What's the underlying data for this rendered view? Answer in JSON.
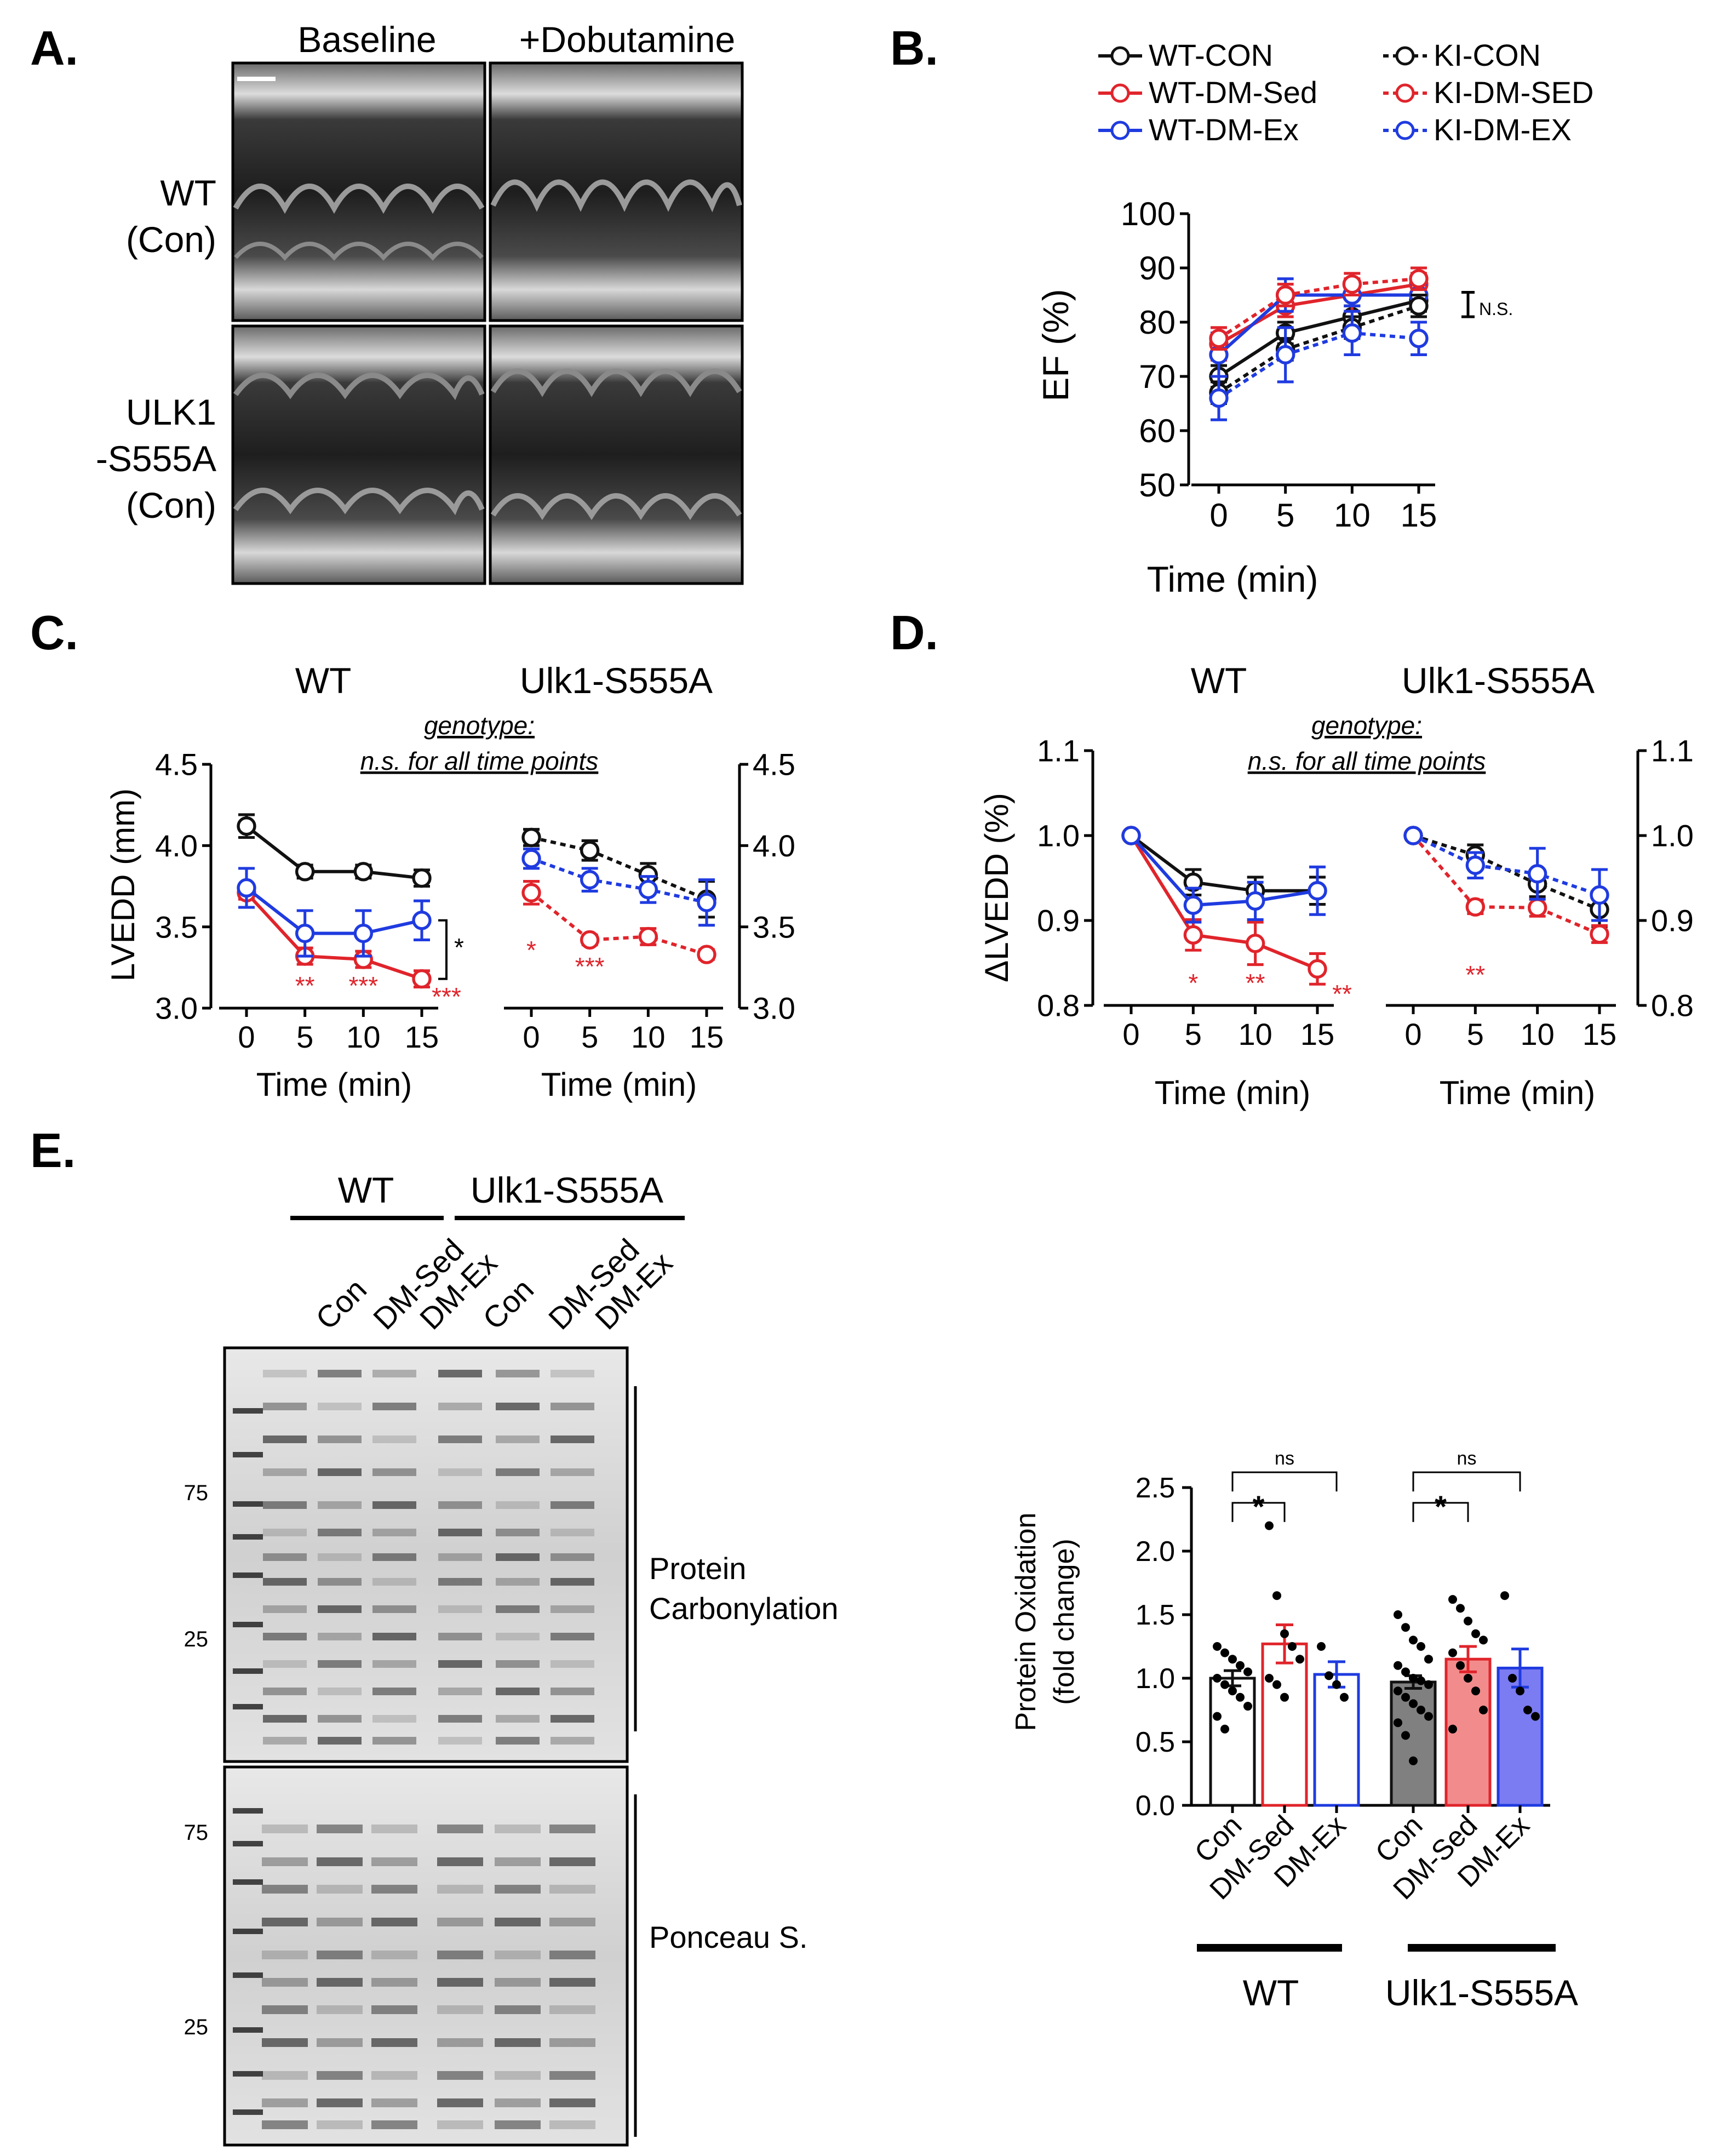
{
  "colors": {
    "con": "#111111",
    "sed": "#e0242b",
    "ex": "#1f3be0",
    "conFill": "#808080",
    "sedFill": "#f28c8c",
    "exFill": "#7b7bf2"
  },
  "panelA": {
    "label": "A.",
    "col_labels": [
      "Baseline",
      "+Dobutamine"
    ],
    "row1_lines": [
      "WT",
      "(Con)"
    ],
    "row2_lines": [
      "ULK1",
      "-S555A",
      "(Con)"
    ]
  },
  "chart_data": [
    {
      "id": "B",
      "type": "line",
      "panel_label": "B.",
      "title": "",
      "xlabel": "Time (min)",
      "ylabel": "EF (%)",
      "x": [
        0,
        5,
        10,
        15
      ],
      "ylim": [
        50,
        100
      ],
      "yticks": [
        50,
        60,
        70,
        80,
        90,
        100
      ],
      "annotation": "N.S.",
      "legend": [
        "WT-CON",
        "KI-CON",
        "WT-DM-Sed",
        "KI-DM-SED",
        "WT-DM-Ex",
        "KI-DM-EX"
      ],
      "series": [
        {
          "name": "WT-CON",
          "color": "con",
          "dashed": false,
          "values": [
            70,
            78,
            81,
            84
          ],
          "err": [
            2,
            2,
            2,
            2
          ]
        },
        {
          "name": "WT-DM-Sed",
          "color": "sed",
          "dashed": false,
          "values": [
            76,
            83,
            85,
            87
          ],
          "err": [
            3,
            2,
            3,
            2
          ]
        },
        {
          "name": "WT-DM-Ex",
          "color": "ex",
          "dashed": false,
          "values": [
            74,
            85,
            85,
            85
          ],
          "err": [
            4,
            3,
            2,
            2
          ]
        },
        {
          "name": "KI-CON",
          "color": "con",
          "dashed": true,
          "values": [
            67,
            75,
            79,
            83
          ],
          "err": [
            2,
            2,
            2,
            2
          ]
        },
        {
          "name": "KI-DM-SED",
          "color": "sed",
          "dashed": true,
          "values": [
            77,
            85,
            87,
            88
          ],
          "err": [
            2,
            2,
            2,
            2
          ]
        },
        {
          "name": "KI-DM-EX",
          "color": "ex",
          "dashed": true,
          "values": [
            66,
            74,
            78,
            77
          ],
          "err": [
            4,
            5,
            4,
            3
          ]
        }
      ]
    },
    {
      "id": "C",
      "type": "line",
      "panel_label": "C.",
      "xlabel": "Time (min)",
      "ylabel": "LVEDD (mm)",
      "x": [
        0,
        5,
        10,
        15
      ],
      "ylim": [
        3.0,
        4.5
      ],
      "yticks": [
        "3.0",
        "3.5",
        "4.0",
        "4.5"
      ],
      "left_title": "WT",
      "right_title": "Ulk1-S555A",
      "note_lines": [
        "genotype:",
        "n.s. for all time points"
      ],
      "bracket_star": "*",
      "left_sig": [
        "",
        "**",
        "***",
        "***"
      ],
      "right_sig": [
        "*",
        "***",
        "",
        ""
      ],
      "left_series": [
        {
          "name": "Con",
          "color": "con",
          "dashed": false,
          "values": [
            4.12,
            3.84,
            3.84,
            3.8
          ],
          "err": [
            0.07,
            0.04,
            0.04,
            0.05
          ]
        },
        {
          "name": "DM-Sed",
          "color": "sed",
          "dashed": false,
          "values": [
            3.71,
            3.32,
            3.3,
            3.18
          ],
          "err": [
            0.04,
            0.05,
            0.05,
            0.05
          ]
        },
        {
          "name": "DM-Ex",
          "color": "ex",
          "dashed": false,
          "values": [
            3.74,
            3.46,
            3.46,
            3.54
          ],
          "err": [
            0.12,
            0.14,
            0.14,
            0.12
          ]
        }
      ],
      "right_series": [
        {
          "name": "Con",
          "color": "con",
          "dashed": true,
          "values": [
            4.05,
            3.97,
            3.82,
            3.67
          ],
          "err": [
            0.05,
            0.06,
            0.07,
            0.11
          ]
        },
        {
          "name": "DM-Sed",
          "color": "sed",
          "dashed": true,
          "values": [
            3.71,
            3.42,
            3.44,
            3.33
          ],
          "err": [
            0.07,
            0.03,
            0.05,
            0.03
          ]
        },
        {
          "name": "DM-Ex",
          "color": "ex",
          "dashed": true,
          "values": [
            3.92,
            3.79,
            3.73,
            3.65
          ],
          "err": [
            0.06,
            0.07,
            0.08,
            0.14
          ]
        }
      ]
    },
    {
      "id": "D",
      "type": "line",
      "panel_label": "D.",
      "xlabel": "Time (min)",
      "ylabel": "ΔLVEDD (%)",
      "x": [
        0,
        5,
        10,
        15
      ],
      "ylim": [
        0.8,
        1.1
      ],
      "yticks": [
        "0.8",
        "0.9",
        "1.0",
        "1.1"
      ],
      "left_title": "WT",
      "right_title": "Ulk1-S555A",
      "note_lines": [
        "genotype:",
        "n.s. for all time points"
      ],
      "left_sig": [
        "",
        "*",
        "**",
        "**"
      ],
      "right_sig": [
        "",
        "**",
        "",
        ""
      ],
      "left_series": [
        {
          "name": "Con",
          "color": "con",
          "dashed": false,
          "values": [
            1.0,
            0.945,
            0.935,
            0.935
          ],
          "err": [
            0,
            0.015,
            0.016,
            0.016
          ]
        },
        {
          "name": "DM-Sed",
          "color": "sed",
          "dashed": false,
          "values": [
            1.0,
            0.883,
            0.873,
            0.843
          ],
          "err": [
            0,
            0.018,
            0.025,
            0.018
          ]
        },
        {
          "name": "DM-Ex",
          "color": "ex",
          "dashed": false,
          "values": [
            1.0,
            0.918,
            0.923,
            0.935
          ],
          "err": [
            0,
            0.02,
            0.022,
            0.028
          ]
        }
      ],
      "right_series": [
        {
          "name": "Con",
          "color": "con",
          "dashed": true,
          "values": [
            1.0,
            0.977,
            0.943,
            0.913
          ],
          "err": [
            0,
            0.012,
            0.015,
            0.02
          ]
        },
        {
          "name": "DM-Sed",
          "color": "sed",
          "dashed": true,
          "values": [
            1.0,
            0.916,
            0.915,
            0.884
          ],
          "err": [
            0,
            0.008,
            0.01,
            0.01
          ]
        },
        {
          "name": "DM-Ex",
          "color": "ex",
          "dashed": true,
          "values": [
            1.0,
            0.965,
            0.955,
            0.93
          ],
          "err": [
            0,
            0.015,
            0.03,
            0.03
          ]
        }
      ]
    },
    {
      "id": "E-bar",
      "type": "bar",
      "ylabel_lines": [
        "Protein Oxidation",
        "(fold change)"
      ],
      "categories": [
        "Con",
        "DM-Sed",
        "DM-Ex",
        "Con",
        "DM-Sed",
        "DM-Ex"
      ],
      "groups": [
        "WT",
        "Ulk1-S555A"
      ],
      "ylim": [
        0,
        2.5
      ],
      "yticks": [
        "0.0",
        "0.5",
        "1.0",
        "1.5",
        "2.0",
        "2.5"
      ],
      "bars": [
        {
          "value": 1.0,
          "err": 0.06,
          "color": "con",
          "filled": false,
          "points": [
            1.25,
            1.2,
            1.15,
            1.1,
            1.05,
            1.0,
            0.95,
            0.9,
            0.85,
            0.78,
            0.7,
            0.6
          ]
        },
        {
          "value": 1.27,
          "err": 0.15,
          "color": "sed",
          "filled": false,
          "points": [
            2.2,
            1.65,
            1.35,
            1.25,
            1.15,
            1.0,
            0.95,
            0.85
          ]
        },
        {
          "value": 1.03,
          "err": 0.1,
          "color": "ex",
          "filled": false,
          "points": [
            1.25,
            1.02,
            0.95,
            0.85
          ]
        },
        {
          "value": 0.97,
          "err": 0.05,
          "color": "con",
          "filled": true,
          "points": [
            1.5,
            1.4,
            1.3,
            1.25,
            1.15,
            1.1,
            1.05,
            1.0,
            0.98,
            0.95,
            0.9,
            0.85,
            0.8,
            0.75,
            0.7,
            0.65,
            0.55,
            0.35
          ]
        },
        {
          "value": 1.15,
          "err": 0.1,
          "color": "sed",
          "filled": true,
          "points": [
            1.62,
            1.55,
            1.45,
            1.35,
            1.3,
            1.2,
            1.1,
            1.0,
            0.9,
            0.75,
            0.6
          ]
        },
        {
          "value": 1.08,
          "err": 0.15,
          "color": "ex",
          "filled": true,
          "points": [
            1.65,
            1.0,
            0.9,
            0.75,
            0.7
          ]
        }
      ],
      "comparisons": [
        {
          "label": "*",
          "from": 0,
          "to": 1,
          "level": 2.38
        },
        {
          "label": "ns",
          "from": 0,
          "to": 2,
          "level": 2.62
        },
        {
          "label": "*",
          "from": 3,
          "to": 4,
          "level": 2.38
        },
        {
          "label": "ns",
          "from": 3,
          "to": 5,
          "level": 2.62
        }
      ]
    }
  ],
  "panelE": {
    "label": "E.",
    "group_labels": [
      "WT",
      "Ulk1-S555A"
    ],
    "lane_labels": [
      "Con",
      "DM-Sed",
      "DM-Ex",
      "Con",
      "DM-Sed",
      "DM-Ex"
    ],
    "blot1_label_lines": [
      "Protein",
      "Carbonylation"
    ],
    "blot2_label": "Ponceau S.",
    "marker_labels": [
      "75",
      "25"
    ]
  }
}
